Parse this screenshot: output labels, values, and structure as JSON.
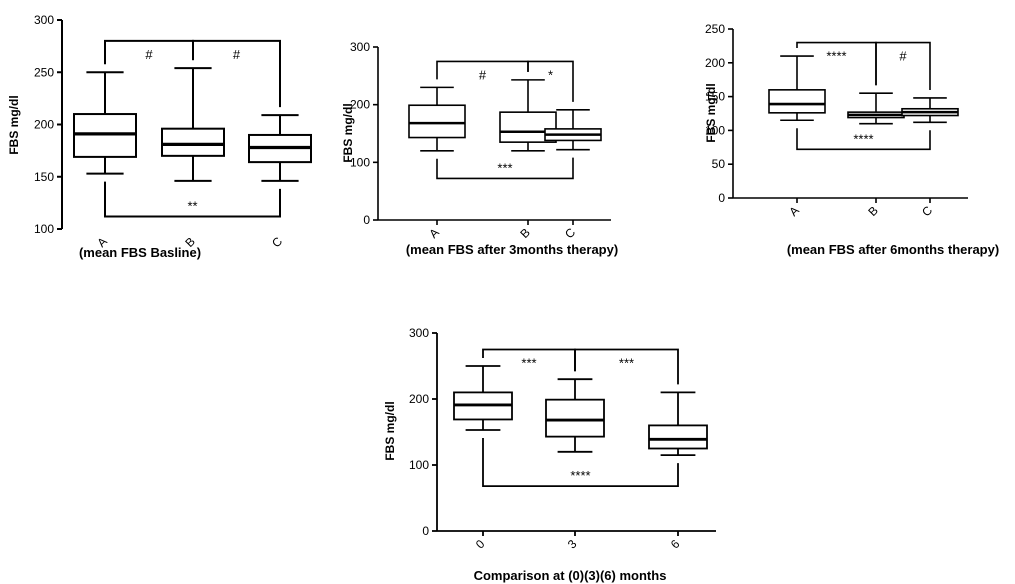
{
  "chart_data": [
    {
      "type": "box",
      "ylabel": "FBS mg/dl",
      "caption": "(mean FBS Basline)",
      "ylim": [
        100,
        300
      ],
      "yticks": [
        100,
        150,
        200,
        250,
        300
      ],
      "categories": [
        "A",
        "B",
        "C"
      ],
      "boxes": [
        {
          "min": 153,
          "q1": 169,
          "median": 191,
          "q3": 210,
          "max": 250
        },
        {
          "min": 146,
          "q1": 170,
          "median": 181,
          "q3": 196,
          "max": 254
        },
        {
          "min": 146,
          "q1": 164,
          "median": 178,
          "q3": 190,
          "max": 209
        }
      ],
      "annotations": [
        {
          "label": "#",
          "from": "A",
          "to": "B",
          "at": 280,
          "side": "top"
        },
        {
          "label": "#",
          "from": "B",
          "to": "C",
          "at": 280,
          "side": "top"
        },
        {
          "label": "**",
          "from": "A",
          "to": "C",
          "at": 112,
          "side": "bottom"
        }
      ]
    },
    {
      "type": "box",
      "ylabel": "FBS mg/dl",
      "caption": "(mean FBS after 3months therapy)",
      "ylim": [
        0,
        300
      ],
      "yticks": [
        0,
        100,
        200,
        300
      ],
      "categories": [
        "A",
        "B",
        "C"
      ],
      "boxes": [
        {
          "min": 120,
          "q1": 143,
          "median": 168,
          "q3": 199,
          "max": 230
        },
        {
          "min": 120,
          "q1": 135,
          "median": 153,
          "q3": 187,
          "max": 243
        },
        {
          "min": 122,
          "q1": 138,
          "median": 148,
          "q3": 158,
          "max": 191
        }
      ],
      "annotations": [
        {
          "label": "#",
          "from": "A",
          "to": "B",
          "at": 275,
          "side": "top"
        },
        {
          "label": "*",
          "from": "B",
          "to": "C",
          "at": 275,
          "side": "top"
        },
        {
          "label": "***",
          "from": "A",
          "to": "C",
          "at": 72,
          "side": "bottom"
        }
      ]
    },
    {
      "type": "box",
      "ylabel": "FBS mg/dl",
      "caption": "(mean FBS after 6months therapy)",
      "ylim": [
        0,
        250
      ],
      "yticks": [
        0,
        50,
        100,
        150,
        200,
        250
      ],
      "categories": [
        "A",
        "B",
        "C"
      ],
      "boxes": [
        {
          "min": 115,
          "q1": 126,
          "median": 139,
          "q3": 160,
          "max": 210
        },
        {
          "min": 110,
          "q1": 119,
          "median": 123,
          "q3": 127,
          "max": 155
        },
        {
          "min": 112,
          "q1": 122,
          "median": 127,
          "q3": 132,
          "max": 148
        }
      ],
      "annotations": [
        {
          "label": "****",
          "from": "A",
          "to": "B",
          "at": 230,
          "side": "top"
        },
        {
          "label": "#",
          "from": "B",
          "to": "C",
          "at": 230,
          "side": "top"
        },
        {
          "label": "****",
          "from": "A",
          "to": "C",
          "at": 72,
          "side": "bottom"
        }
      ]
    },
    {
      "type": "box",
      "ylabel": "FBS mg/dl",
      "caption": "Comparison at (0)(3)(6) months",
      "ylim": [
        0,
        300
      ],
      "yticks": [
        0,
        100,
        200,
        300
      ],
      "categories": [
        "0",
        "3",
        "6"
      ],
      "boxes": [
        {
          "min": 153,
          "q1": 169,
          "median": 191,
          "q3": 210,
          "max": 250
        },
        {
          "min": 120,
          "q1": 143,
          "median": 168,
          "q3": 199,
          "max": 230
        },
        {
          "min": 115,
          "q1": 125,
          "median": 139,
          "q3": 160,
          "max": 210
        }
      ],
      "annotations": [
        {
          "label": "***",
          "from": "0",
          "to": "3",
          "at": 275,
          "side": "top"
        },
        {
          "label": "***",
          "from": "3",
          "to": "6",
          "at": 275,
          "side": "top"
        },
        {
          "label": "****",
          "from": "0",
          "to": "6",
          "at": 68,
          "side": "bottom"
        }
      ]
    }
  ]
}
